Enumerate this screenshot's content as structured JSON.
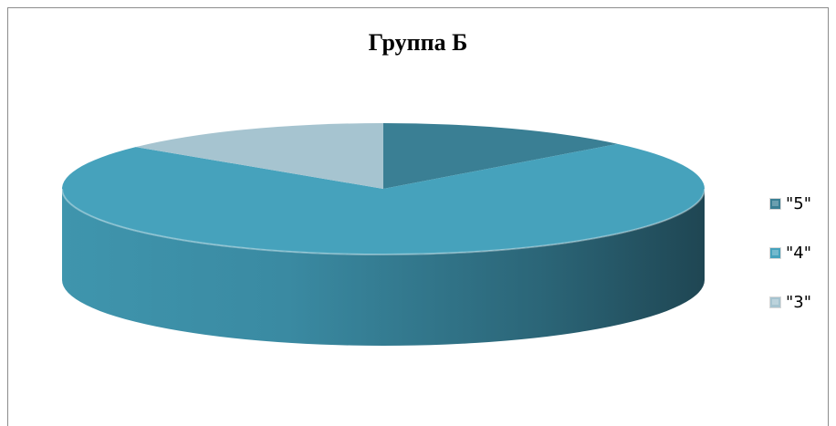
{
  "chart_data": {
    "type": "pie",
    "title": "Группа Б",
    "categories": [
      "\"5\"",
      "\"4\"",
      "\"3\""
    ],
    "values": [
      13,
      73,
      14
    ],
    "colors": [
      "#3a7f94",
      "#46a2bc",
      "#a6c4d0"
    ],
    "legend_position": "right",
    "style": "3d"
  }
}
